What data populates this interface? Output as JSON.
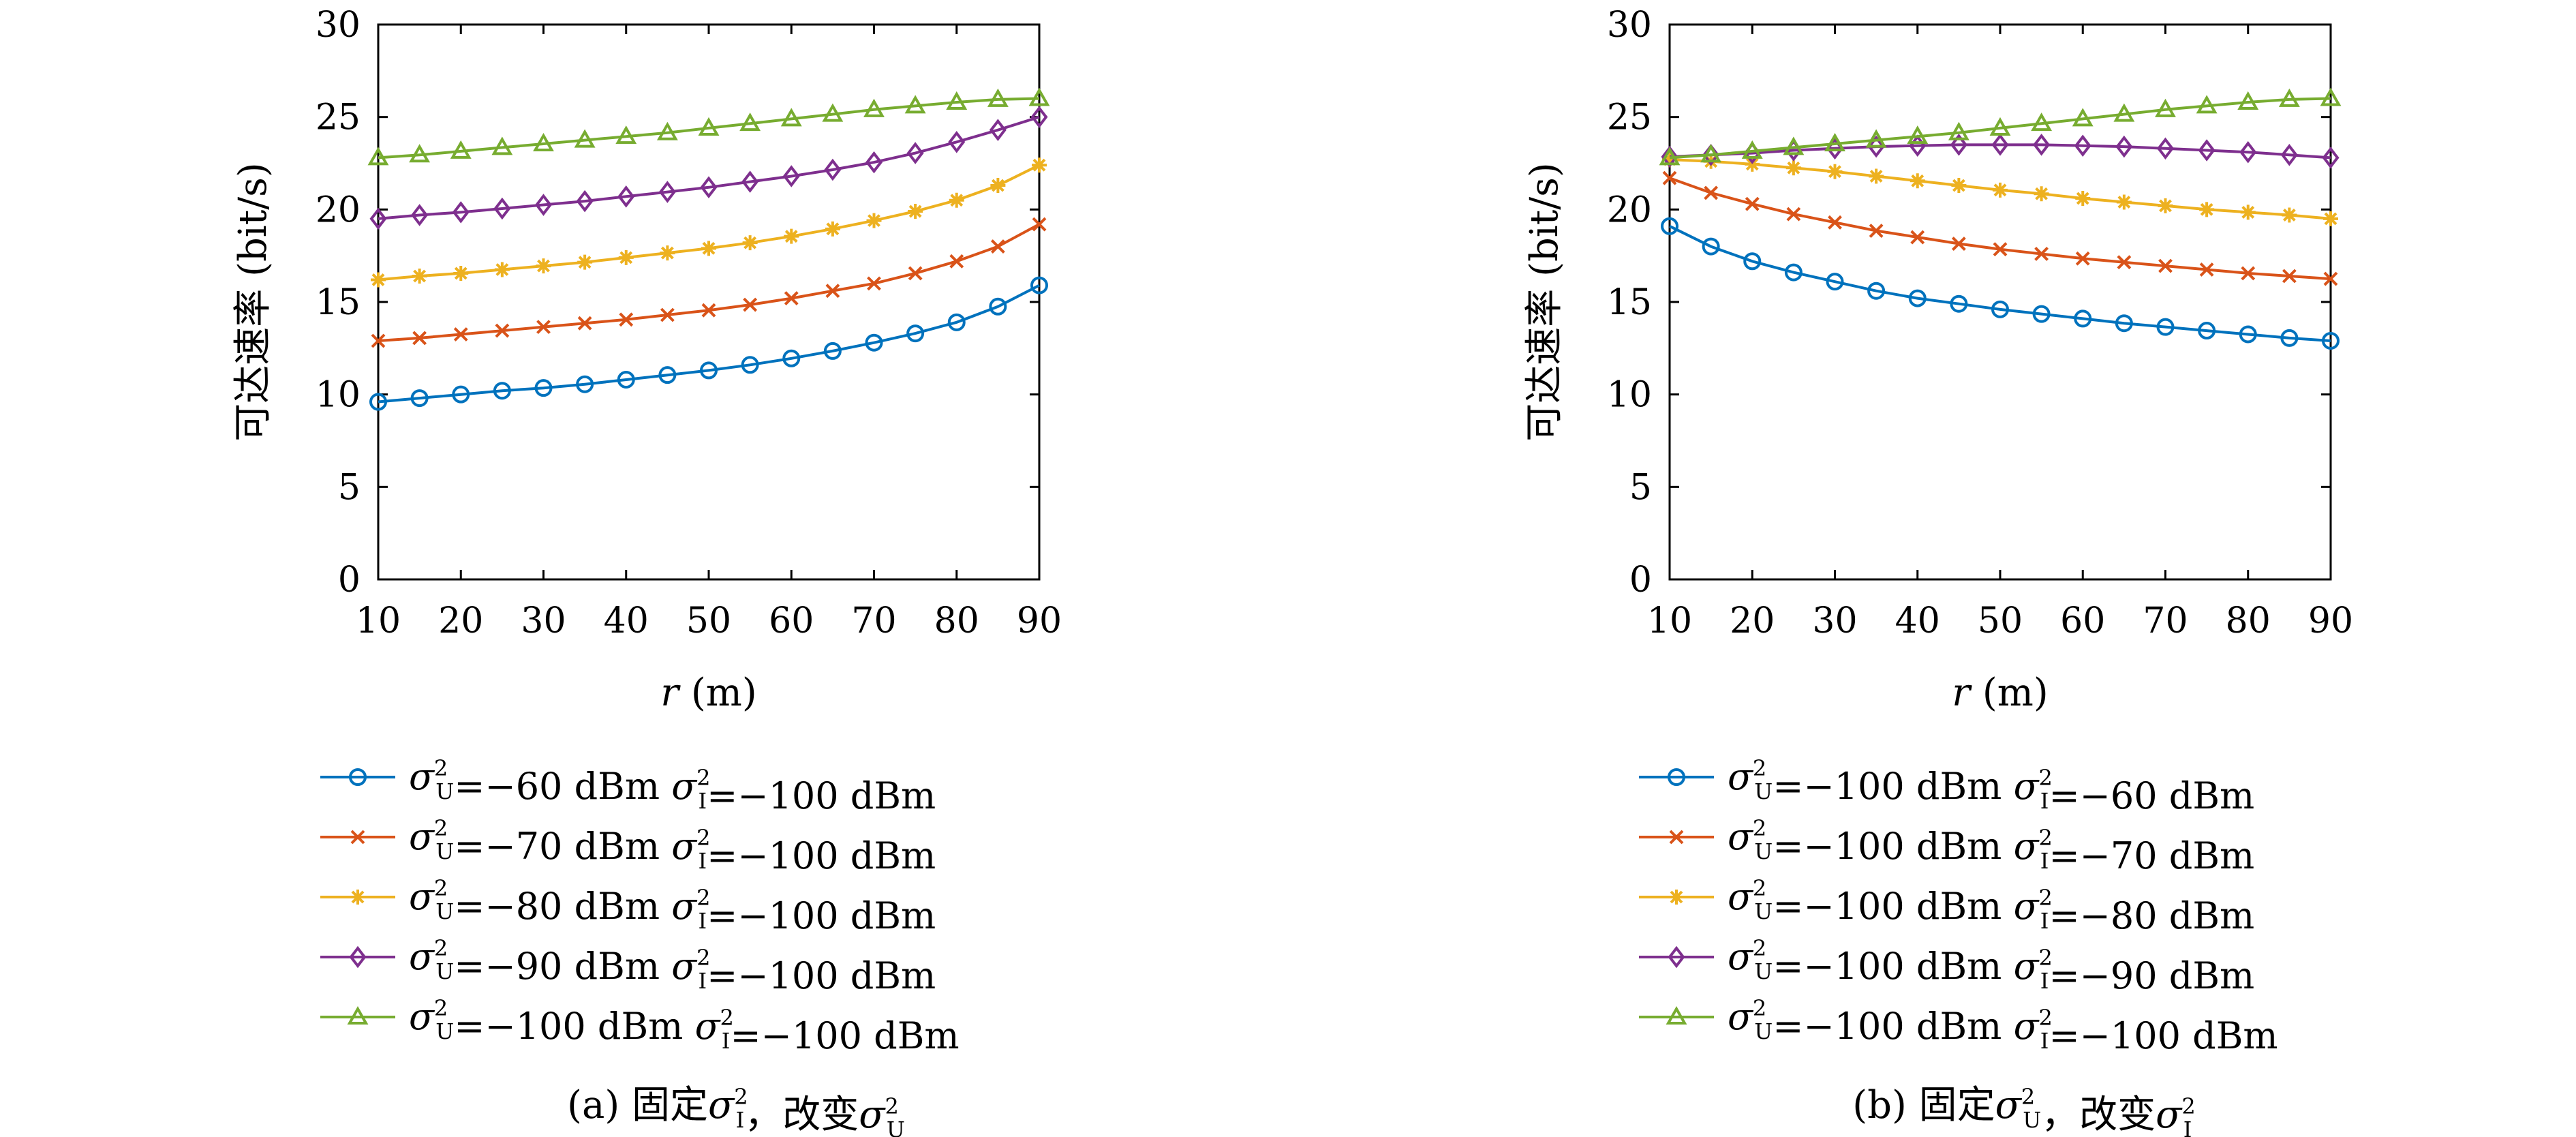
{
  "chart_data": [
    {
      "type": "line",
      "caption": "(a) 固定σ²_I，改变σ²_U",
      "xlabel": "r (m)",
      "ylabel": "可达速率 (bit/s)",
      "xlim": [
        10,
        90
      ],
      "ylim": [
        0,
        30
      ],
      "x_ticks": [
        10,
        20,
        30,
        40,
        50,
        60,
        70,
        80,
        90
      ],
      "y_ticks": [
        0,
        5,
        10,
        15,
        20,
        25,
        30
      ],
      "grid": false,
      "legend_position": "below",
      "x": [
        10,
        15,
        20,
        25,
        30,
        35,
        40,
        45,
        50,
        55,
        60,
        65,
        70,
        75,
        80,
        85,
        90
      ],
      "series": [
        {
          "sU": "−60 dBm",
          "sI": "−100 dBm",
          "color": "#0072BD",
          "marker": "circle",
          "values": [
            9.6,
            9.8,
            10.0,
            10.2,
            10.35,
            10.55,
            10.8,
            11.05,
            11.3,
            11.6,
            11.95,
            12.35,
            12.8,
            13.3,
            13.9,
            14.75,
            15.9
          ]
        },
        {
          "sU": "−70 dBm",
          "sI": "−100 dBm",
          "color": "#D95319",
          "marker": "x",
          "values": [
            12.9,
            13.05,
            13.25,
            13.45,
            13.65,
            13.85,
            14.05,
            14.3,
            14.55,
            14.85,
            15.2,
            15.6,
            16.0,
            16.55,
            17.2,
            18.0,
            19.2
          ]
        },
        {
          "sU": "−80 dBm",
          "sI": "−100 dBm",
          "color": "#EDB120",
          "marker": "star",
          "values": [
            16.2,
            16.4,
            16.55,
            16.75,
            16.95,
            17.15,
            17.4,
            17.65,
            17.9,
            18.2,
            18.55,
            18.95,
            19.4,
            19.9,
            20.5,
            21.3,
            22.4
          ]
        },
        {
          "sU": "−90 dBm",
          "sI": "−100 dBm",
          "color": "#7E2F8E",
          "marker": "diamond",
          "values": [
            19.5,
            19.7,
            19.85,
            20.05,
            20.25,
            20.45,
            20.7,
            20.95,
            21.2,
            21.5,
            21.8,
            22.15,
            22.55,
            23.05,
            23.65,
            24.3,
            25.0
          ]
        },
        {
          "sU": "−100 dBm",
          "sI": "−100 dBm",
          "color": "#77AC30",
          "marker": "triangle",
          "values": [
            22.8,
            22.95,
            23.15,
            23.35,
            23.55,
            23.75,
            23.95,
            24.15,
            24.4,
            24.65,
            24.9,
            25.15,
            25.4,
            25.6,
            25.8,
            25.95,
            26.0
          ]
        }
      ]
    },
    {
      "type": "line",
      "caption": "(b) 固定σ²_U，改变σ²_I",
      "xlabel": "r (m)",
      "ylabel": "可达速率 (bit/s)",
      "xlim": [
        10,
        90
      ],
      "ylim": [
        0,
        30
      ],
      "x_ticks": [
        10,
        20,
        30,
        40,
        50,
        60,
        70,
        80,
        90
      ],
      "y_ticks": [
        0,
        5,
        10,
        15,
        20,
        25,
        30
      ],
      "grid": false,
      "legend_position": "below",
      "x": [
        10,
        15,
        20,
        25,
        30,
        35,
        40,
        45,
        50,
        55,
        60,
        65,
        70,
        75,
        80,
        85,
        90
      ],
      "series": [
        {
          "sU": "−100 dBm",
          "sI": "−60 dBm",
          "color": "#0072BD",
          "marker": "circle",
          "values": [
            19.1,
            18.0,
            17.2,
            16.6,
            16.1,
            15.6,
            15.2,
            14.9,
            14.6,
            14.35,
            14.1,
            13.85,
            13.65,
            13.45,
            13.25,
            13.05,
            12.9
          ]
        },
        {
          "sU": "−100 dBm",
          "sI": "−70 dBm",
          "color": "#D95319",
          "marker": "x",
          "values": [
            21.7,
            20.9,
            20.3,
            19.75,
            19.3,
            18.85,
            18.5,
            18.15,
            17.85,
            17.6,
            17.35,
            17.15,
            16.95,
            16.75,
            16.55,
            16.4,
            16.25
          ]
        },
        {
          "sU": "−100 dBm",
          "sI": "−80 dBm",
          "color": "#EDB120",
          "marker": "star",
          "values": [
            22.7,
            22.6,
            22.45,
            22.25,
            22.05,
            21.8,
            21.55,
            21.3,
            21.05,
            20.85,
            20.6,
            20.4,
            20.2,
            20.0,
            19.85,
            19.7,
            19.5
          ]
        },
        {
          "sU": "−100 dBm",
          "sI": "−90 dBm",
          "color": "#7E2F8E",
          "marker": "diamond",
          "values": [
            22.85,
            22.95,
            23.05,
            23.2,
            23.3,
            23.4,
            23.45,
            23.5,
            23.5,
            23.5,
            23.45,
            23.4,
            23.3,
            23.2,
            23.1,
            22.95,
            22.8
          ]
        },
        {
          "sU": "−100 dBm",
          "sI": "−100 dBm",
          "color": "#77AC30",
          "marker": "triangle",
          "values": [
            22.8,
            22.95,
            23.15,
            23.35,
            23.55,
            23.75,
            23.95,
            24.15,
            24.4,
            24.65,
            24.9,
            25.15,
            25.4,
            25.6,
            25.8,
            25.95,
            26.0
          ]
        }
      ]
    }
  ]
}
